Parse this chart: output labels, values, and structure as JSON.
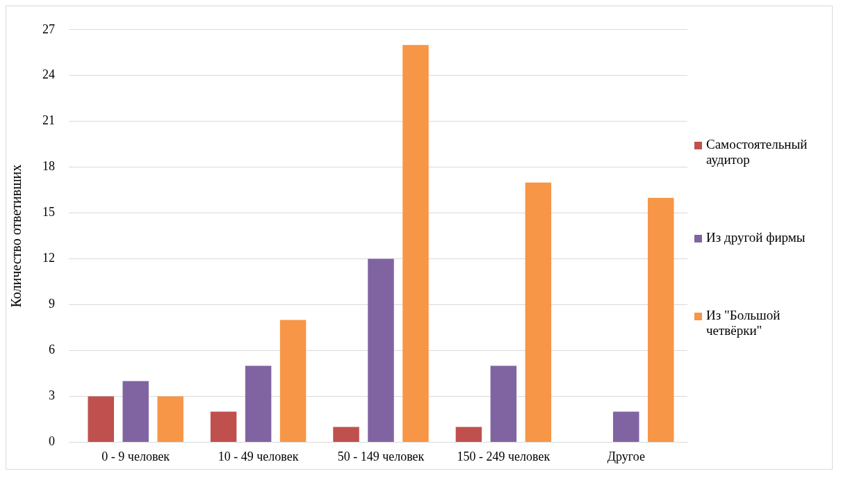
{
  "chart_data": {
    "type": "bar",
    "ylabel": "Количество ответивших",
    "categories": [
      "0 - 9 человек",
      "10 - 49 человек",
      "50 - 149 человек",
      "150 - 249 человек",
      "Другое"
    ],
    "series": [
      {
        "name": "Самостоятельный аудитор",
        "color": "#c0504d",
        "values": [
          3,
          2,
          1,
          1,
          0
        ]
      },
      {
        "name": "Из другой фирмы",
        "color": "#8064a2",
        "values": [
          4,
          5,
          12,
          5,
          2
        ]
      },
      {
        "name": "Из \"Большой четвёрки\"",
        "color": "#f79646",
        "values": [
          3,
          8,
          26,
          17,
          16
        ]
      }
    ],
    "ylim": [
      0,
      27
    ],
    "yticks": [
      0,
      3,
      6,
      9,
      12,
      15,
      18,
      21,
      24,
      27
    ],
    "grid": "y",
    "legend": "right"
  }
}
